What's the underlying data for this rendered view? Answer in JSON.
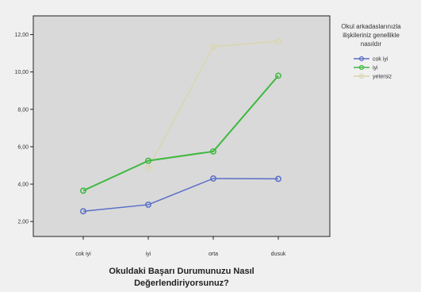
{
  "chart_data": {
    "type": "line",
    "categories": [
      "cok iyi",
      "iyi",
      "orta",
      "dusuk"
    ],
    "xlabel": [
      "Okuldaki Başarı Durumunuzu Nasıl",
      "Değerlendiriyorsunuz?"
    ],
    "ylabel": "",
    "ylim": [
      1.2,
      13.0
    ],
    "yticks": [
      2,
      4,
      6,
      8,
      10,
      12
    ],
    "yticklabels": [
      "2,00",
      "4,00",
      "6,00",
      "8,00",
      "10,00",
      "12,00"
    ],
    "grid": false,
    "legend": {
      "title": [
        "Okul arkadaslarınızla",
        "ilişkileriniz genellikle",
        "nasıldır"
      ],
      "placement": "right"
    },
    "series": [
      {
        "name": "cok iyi",
        "color": "#5a6fc8",
        "values": [
          2.55,
          2.9,
          4.3,
          4.28
        ]
      },
      {
        "name": "iyi",
        "color": "#3fb83f",
        "values": [
          3.65,
          5.25,
          5.75,
          9.8
        ]
      },
      {
        "name": "yetersiz",
        "color": "#d9d6b0",
        "values": [
          null,
          4.85,
          11.35,
          11.65
        ]
      }
    ]
  }
}
